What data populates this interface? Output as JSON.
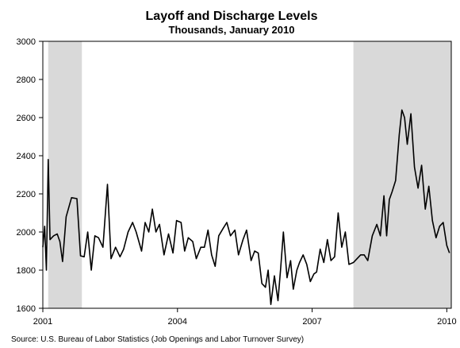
{
  "chart_data": {
    "type": "line",
    "title": "Layoff and Discharge Levels",
    "subtitle": "Thousands, January 2010",
    "source": "Source: U.S. Bureau of Labor Statistics (Job Openings and Labor Turnover Survey)",
    "xlabel": "",
    "ylabel": "",
    "xlim": [
      2001.0,
      2010.1
    ],
    "ylim": [
      1600,
      3000
    ],
    "y_ticks": [
      1600,
      1800,
      2000,
      2200,
      2400,
      2600,
      2800,
      3000
    ],
    "x_ticks": [
      2001,
      2004,
      2007,
      2010
    ],
    "grid": false,
    "legend": "none",
    "line_color": "#000000",
    "shade_color": "#d9d9d9",
    "recession_shading": [
      {
        "start": 2001.12,
        "end": 2001.87
      },
      {
        "start": 2007.92,
        "end": 2010.1
      }
    ],
    "series": [
      {
        "x": [
          2001.0,
          2001.04,
          2001.08,
          2001.12,
          2001.16,
          2001.2,
          2001.24,
          2001.32,
          2001.38,
          2001.44,
          2001.52,
          2001.64,
          2001.76,
          2001.84,
          2001.92,
          2002.0,
          2002.08,
          2002.16,
          2002.24,
          2002.34,
          2002.44,
          2002.52,
          2002.62,
          2002.72,
          2002.8,
          2002.9,
          2003.0,
          2003.08,
          2003.2,
          2003.28,
          2003.36,
          2003.44,
          2003.52,
          2003.6,
          2003.7,
          2003.8,
          2003.9,
          2003.98,
          2004.08,
          2004.16,
          2004.24,
          2004.34,
          2004.42,
          2004.52,
          2004.6,
          2004.68,
          2004.76,
          2004.84,
          2004.92,
          2005.02,
          2005.1,
          2005.18,
          2005.28,
          2005.36,
          2005.46,
          2005.54,
          2005.64,
          2005.72,
          2005.8,
          2005.88,
          2005.96,
          2006.02,
          2006.08,
          2006.16,
          2006.24,
          2006.3,
          2006.36,
          2006.44,
          2006.52,
          2006.58,
          2006.66,
          2006.72,
          2006.8,
          2006.88,
          2006.96,
          2007.04,
          2007.1,
          2007.18,
          2007.26,
          2007.34,
          2007.42,
          2007.5,
          2007.58,
          2007.66,
          2007.74,
          2007.82,
          2007.92,
          2008.0,
          2008.08,
          2008.16,
          2008.24,
          2008.34,
          2008.44,
          2008.52,
          2008.6,
          2008.66,
          2008.72,
          2008.78,
          2008.86,
          2008.94,
          2009.0,
          2009.06,
          2009.12,
          2009.2,
          2009.28,
          2009.36,
          2009.44,
          2009.52,
          2009.6,
          2009.68,
          2009.76,
          2009.84,
          2009.92,
          2010.0,
          2010.06
        ],
        "values": [
          1920,
          2030,
          1800,
          2380,
          1960,
          1970,
          1980,
          1990,
          1950,
          1845,
          2080,
          2180,
          2175,
          1875,
          1870,
          2000,
          1800,
          1980,
          1970,
          1920,
          2250,
          1860,
          1920,
          1870,
          1910,
          2000,
          2050,
          2000,
          1900,
          2050,
          2000,
          2120,
          2000,
          2040,
          1880,
          1990,
          1890,
          2060,
          2050,
          1900,
          1970,
          1950,
          1860,
          1920,
          1920,
          2010,
          1880,
          1820,
          1980,
          2020,
          2050,
          1980,
          2010,
          1880,
          1960,
          2010,
          1850,
          1900,
          1890,
          1730,
          1710,
          1800,
          1620,
          1770,
          1640,
          1810,
          2000,
          1760,
          1850,
          1700,
          1800,
          1840,
          1880,
          1830,
          1740,
          1780,
          1790,
          1910,
          1840,
          1960,
          1850,
          1870,
          2100,
          1920,
          2000,
          1830,
          1840,
          1860,
          1880,
          1880,
          1850,
          1980,
          2040,
          1980,
          2190,
          1980,
          2170,
          2210,
          2270,
          2510,
          2640,
          2600,
          2460,
          2620,
          2340,
          2230,
          2350,
          2120,
          2240,
          2060,
          1970,
          2030,
          2050,
          1930,
          1890
        ]
      }
    ]
  }
}
